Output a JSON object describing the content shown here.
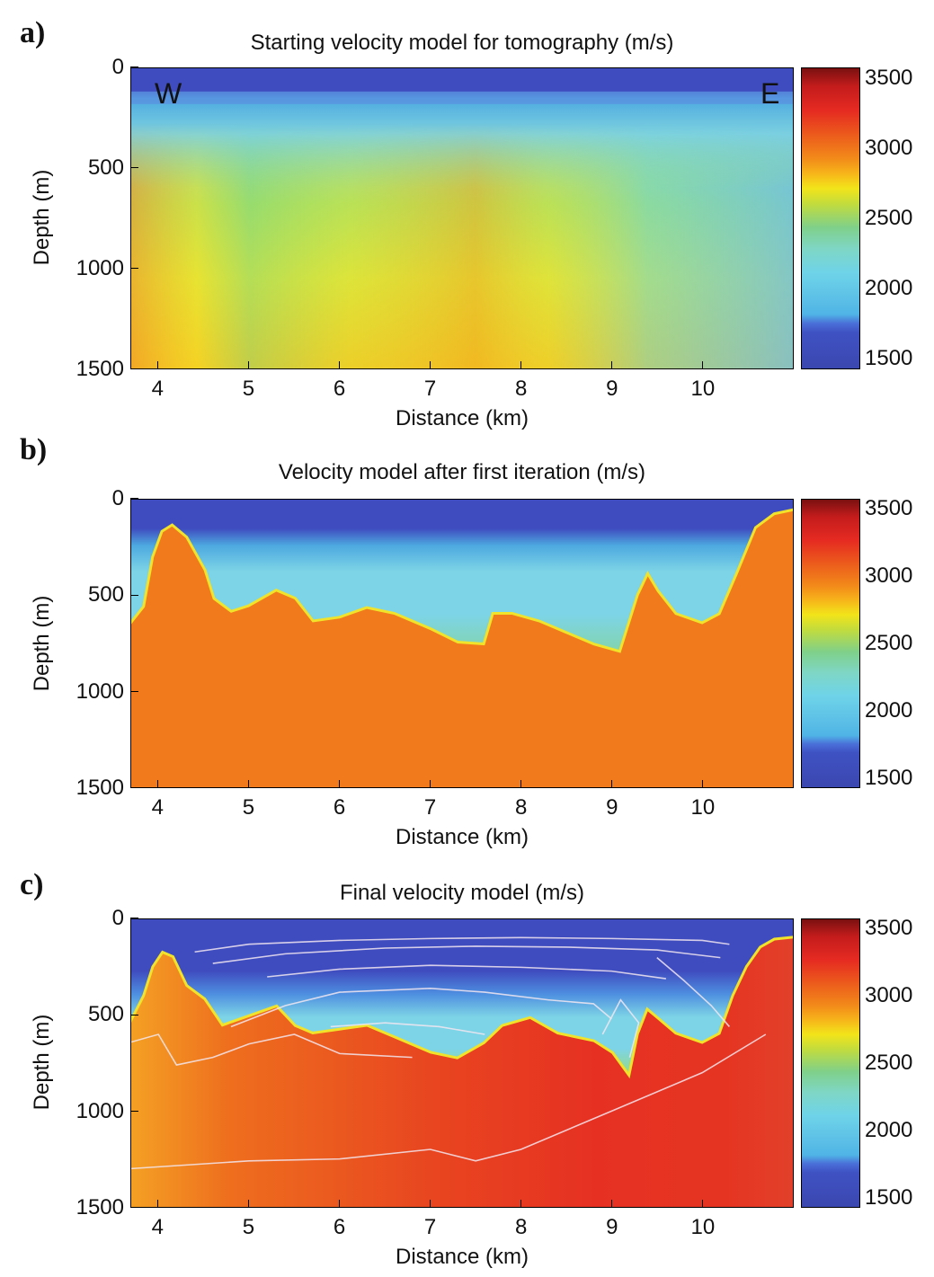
{
  "chart_data": [
    {
      "type": "heatmap",
      "panel_label": "a)",
      "title": "Starting velocity model for tomography (m/s)",
      "xlabel": "Distance (km)",
      "ylabel": "Depth (m)",
      "xlim": [
        3.7,
        11.0
      ],
      "ylim": [
        1500,
        0
      ],
      "x_ticks": [
        "4",
        "5",
        "6",
        "7",
        "8",
        "9",
        "10"
      ],
      "x_tick_values": [
        4,
        5,
        6,
        7,
        8,
        9,
        10
      ],
      "y_ticks": [
        "0",
        "500",
        "1000",
        "1500"
      ],
      "y_tick_values": [
        0,
        500,
        1000,
        1500
      ],
      "colorbar": {
        "min": 1500,
        "max": 3500,
        "ticks": [
          "3500",
          "3000",
          "2500",
          "2000",
          "1500"
        ],
        "tick_values": [
          3500,
          3000,
          2500,
          2000,
          1500
        ],
        "colormap": "jet"
      },
      "annotations": [
        "W",
        "E"
      ],
      "surfaces": [
        {
          "name": "",
          "velocity": 1600,
          "x": [
            3.7,
            11.0
          ],
          "y": [
            0,
            0
          ]
        }
      ],
      "grid": false
    },
    {
      "type": "heatmap",
      "panel_label": "b)",
      "title": "Velocity model after first iteration (m/s)",
      "xlabel": "Distance (km)",
      "ylabel": "Depth (m)",
      "xlim": [
        3.7,
        11.0
      ],
      "ylim": [
        1500,
        0
      ],
      "x_ticks": [
        "4",
        "5",
        "6",
        "7",
        "8",
        "9",
        "10"
      ],
      "x_tick_values": [
        4,
        5,
        6,
        7,
        8,
        9,
        10
      ],
      "y_ticks": [
        "0",
        "500",
        "1000",
        "1500"
      ],
      "y_tick_values": [
        0,
        500,
        1000,
        1500
      ],
      "colorbar": {
        "min": 1500,
        "max": 3500,
        "ticks": [
          "3500",
          "3000",
          "2500",
          "2000",
          "1500"
        ],
        "tick_values": [
          3500,
          3000,
          2500,
          2000,
          1500
        ],
        "colormap": "jet"
      },
      "basement_top": {
        "x": [
          3.7,
          3.85,
          3.95,
          4.05,
          4.15,
          4.3,
          4.5,
          4.6,
          4.8,
          5.0,
          5.3,
          5.5,
          5.7,
          6.0,
          6.3,
          6.6,
          7.0,
          7.3,
          7.6,
          7.7,
          7.9,
          8.2,
          8.5,
          8.8,
          9.1,
          9.3,
          9.4,
          9.5,
          9.7,
          10.0,
          10.2,
          10.4,
          10.6,
          10.8,
          11.0
        ],
        "y": [
          650,
          560,
          300,
          170,
          140,
          200,
          370,
          520,
          590,
          560,
          480,
          520,
          640,
          620,
          570,
          600,
          680,
          750,
          760,
          600,
          600,
          640,
          700,
          760,
          800,
          500,
          400,
          480,
          600,
          650,
          600,
          380,
          150,
          80,
          60
        ]
      },
      "grid": false
    },
    {
      "type": "heatmap",
      "panel_label": "c)",
      "title": "Final velocity model (m/s)",
      "xlabel": "Distance (km)",
      "ylabel": "Depth (m)",
      "xlim": [
        3.7,
        11.0
      ],
      "ylim": [
        1500,
        0
      ],
      "x_ticks": [
        "4",
        "5",
        "6",
        "7",
        "8",
        "9",
        "10"
      ],
      "x_tick_values": [
        4,
        5,
        6,
        7,
        8,
        9,
        10
      ],
      "y_ticks": [
        "0",
        "500",
        "1000",
        "1500"
      ],
      "y_tick_values": [
        0,
        500,
        1000,
        1500
      ],
      "colorbar": {
        "min": 1500,
        "max": 3500,
        "ticks": [
          "3500",
          "3000",
          "2500",
          "2000",
          "1500"
        ],
        "tick_values": [
          3500,
          3000,
          2500,
          2000,
          1500
        ],
        "colormap": "jet"
      },
      "basement_top": {
        "x": [
          3.7,
          3.85,
          3.95,
          4.05,
          4.15,
          4.3,
          4.5,
          4.7,
          5.0,
          5.3,
          5.5,
          5.7,
          6.0,
          6.3,
          6.6,
          7.0,
          7.3,
          7.6,
          7.8,
          8.1,
          8.4,
          8.8,
          9.0,
          9.2,
          9.3,
          9.4,
          9.5,
          9.7,
          10.0,
          10.2,
          10.35,
          10.5,
          10.65,
          10.8,
          11.0
        ],
        "y": [
          540,
          400,
          250,
          180,
          200,
          350,
          420,
          560,
          510,
          460,
          560,
          600,
          580,
          560,
          620,
          700,
          730,
          650,
          560,
          520,
          600,
          640,
          700,
          830,
          600,
          480,
          520,
          600,
          650,
          600,
          400,
          250,
          150,
          110,
          100
        ]
      },
      "reflectors": [
        {
          "x": [
            4.4,
            5.0,
            6.0,
            7.0,
            8.0,
            9.0,
            10.0,
            10.3
          ],
          "y": [
            170,
            130,
            110,
            100,
            95,
            100,
            110,
            130
          ]
        },
        {
          "x": [
            4.6,
            5.4,
            6.5,
            7.5,
            8.5,
            9.5,
            10.2
          ],
          "y": [
            230,
            180,
            150,
            140,
            145,
            160,
            200
          ]
        },
        {
          "x": [
            5.2,
            6.0,
            7.0,
            8.0,
            9.0,
            9.6
          ],
          "y": [
            300,
            260,
            240,
            250,
            270,
            310
          ]
        },
        {
          "x": [
            4.8,
            5.4,
            6.0,
            7.0,
            7.6,
            8.3,
            8.8,
            9.0
          ],
          "y": [
            560,
            450,
            380,
            360,
            380,
            420,
            440,
            520
          ]
        },
        {
          "x": [
            5.9,
            6.5,
            7.1,
            7.6
          ],
          "y": [
            560,
            540,
            560,
            600
          ]
        },
        {
          "x": [
            8.9,
            9.1,
            9.3,
            9.2
          ],
          "y": [
            600,
            420,
            540,
            720
          ]
        },
        {
          "x": [
            3.7,
            4.0,
            4.2,
            4.6,
            5.0,
            5.5,
            6.0,
            6.8
          ],
          "y": [
            640,
            600,
            760,
            720,
            650,
            600,
            700,
            720
          ]
        },
        {
          "x": [
            3.7,
            5.0,
            6.0,
            7.0,
            7.5,
            8.0,
            9.0,
            10.0,
            10.7
          ],
          "y": [
            1300,
            1260,
            1250,
            1200,
            1260,
            1200,
            1000,
            800,
            600
          ]
        },
        {
          "x": [
            9.5,
            9.8,
            10.1,
            10.3
          ],
          "y": [
            200,
            320,
            450,
            560
          ]
        }
      ],
      "grid": false
    }
  ]
}
